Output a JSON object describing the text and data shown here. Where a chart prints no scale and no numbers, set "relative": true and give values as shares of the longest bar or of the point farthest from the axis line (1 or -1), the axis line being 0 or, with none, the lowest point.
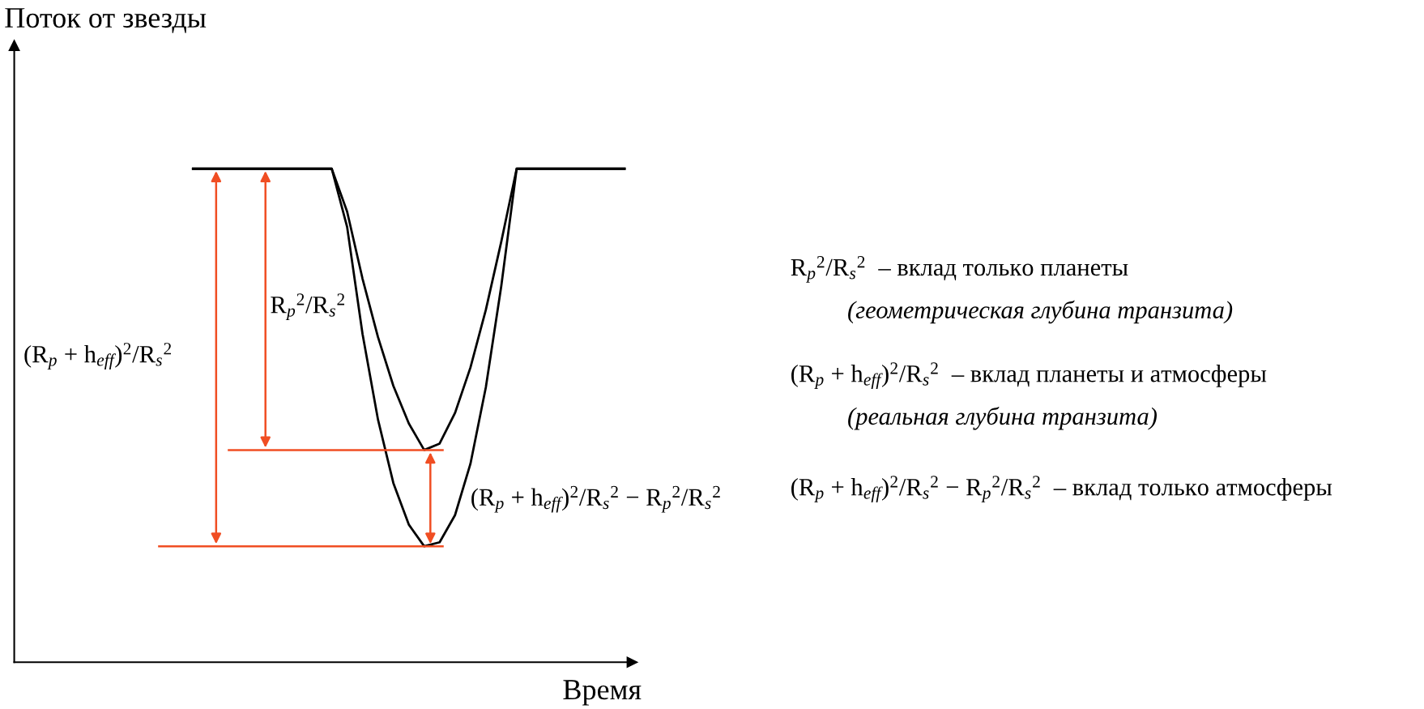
{
  "chart_data": {
    "type": "line",
    "relative": true,
    "xlabel": "Время",
    "ylabel": "Поток от звезды",
    "categories": [
      null,
      null,
      null,
      null,
      null,
      null,
      null,
      null,
      null,
      null,
      null,
      null,
      null,
      null,
      null,
      null,
      null,
      null,
      null,
      null,
      null,
      null,
      null,
      null,
      null,
      null,
      null,
      null,
      null
    ],
    "series": [
      {
        "color": "#000000",
        "values": [
          1,
          1,
          1,
          1,
          1,
          1,
          1,
          1,
          1,
          1,
          0.913,
          0.777,
          0.659,
          0.56,
          0.484,
          0.43,
          0.443,
          0.505,
          0.597,
          0.714,
          0.852,
          1,
          1,
          1,
          1,
          1,
          1,
          1,
          1
        ]
      },
      {
        "color": "#000000",
        "values": [
          1,
          1,
          1,
          1,
          1,
          1,
          1,
          1,
          1,
          1,
          0.882,
          0.665,
          0.492,
          0.363,
          0.279,
          0.235,
          0.243,
          0.298,
          0.402,
          0.557,
          0.762,
          1,
          1,
          1,
          1,
          1,
          1,
          1,
          1
        ]
      }
    ],
    "ref_lines": [
      {
        "axis": "y",
        "value": 0.43,
        "color": "#f04e23"
      },
      {
        "axis": "y",
        "value": 0.235,
        "color": "#f04e23"
      }
    ],
    "annotations": [
      "R$_{p}$$^{2}$/R$_{s}$$^{2}$",
      "(R$_{p}$ + h$_{eff}$)$^{2}$/R$_{s}$$^{2}$",
      "(R$_{p}$ + h$_{eff}$)$^{2}$/R$_{s}$$^{2}$ − R$_{p}$$^{2}$/R$_{s}$$^{2}$",
      "R$_{p}$$^{2}$/R$_{s}$$^{2}$  – вклад только планеты",
      "(геометрическая глубина транзита)",
      "(R$_{p}$ + h$_{eff}$)$^{2}$/R$_{s}$$^{2}$  – вклад планеты и атмосферы",
      "(реальная глубина транзита)",
      "(R$_{p}$ + h$_{eff}$)$^{2}$/R$_{s}$$^{2}$ − R$_{p}$$^{2}$/R$_{s}$$^{2}$  – вклад только атмосферы"
    ]
  }
}
